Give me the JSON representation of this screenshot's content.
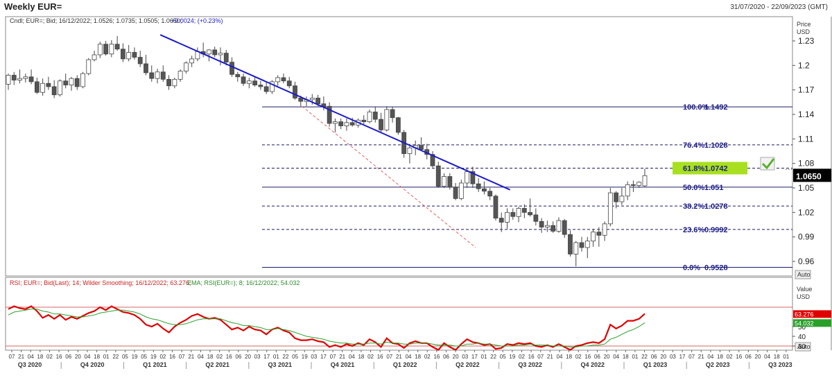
{
  "header": {
    "title": "Weekly EUR=",
    "date_range": "31/07/2020 - 22/09/2023 (GMT)"
  },
  "chart_data": [
    {
      "type": "candlestick",
      "info_line": "Cndl; EUR=; Bid; 16/12/2022; 1.0526; 1.0735; 1.0505; 1.0650;",
      "info_change": "+0.0024; (+0.23%)",
      "y_axis_title": [
        "Price",
        "USD"
      ],
      "y_ticks": [
        "1.23",
        "1.2",
        "1.17",
        "1.14",
        "1.11",
        "1.08",
        "1.05",
        "1.02",
        "0.99",
        "0.96"
      ],
      "ylim": [
        0.949,
        1.243
      ],
      "last_price_label": "1.0650",
      "auto_label": "Auto",
      "candles": [
        [
          1.177,
          1.19,
          1.17,
          1.188
        ],
        [
          1.188,
          1.192,
          1.176,
          1.182
        ],
        [
          1.182,
          1.195,
          1.178,
          1.184
        ],
        [
          1.184,
          1.19,
          1.179,
          1.186
        ],
        [
          1.186,
          1.195,
          1.177,
          1.18
        ],
        [
          1.18,
          1.185,
          1.165,
          1.167
        ],
        [
          1.167,
          1.184,
          1.163,
          1.178
        ],
        [
          1.178,
          1.186,
          1.17,
          1.174
        ],
        [
          1.174,
          1.182,
          1.16,
          1.164
        ],
        [
          1.164,
          1.183,
          1.162,
          1.181
        ],
        [
          1.181,
          1.19,
          1.172,
          1.176
        ],
        [
          1.176,
          1.186,
          1.169,
          1.184
        ],
        [
          1.184,
          1.188,
          1.17,
          1.174
        ],
        [
          1.174,
          1.192,
          1.172,
          1.19
        ],
        [
          1.19,
          1.209,
          1.188,
          1.207
        ],
        [
          1.207,
          1.218,
          1.205,
          1.213
        ],
        [
          1.213,
          1.229,
          1.209,
          1.226
        ],
        [
          1.226,
          1.23,
          1.212,
          1.214
        ],
        [
          1.214,
          1.231,
          1.21,
          1.226
        ],
        [
          1.226,
          1.236,
          1.218,
          1.22
        ],
        [
          1.22,
          1.227,
          1.204,
          1.208
        ],
        [
          1.208,
          1.225,
          1.205,
          1.216
        ],
        [
          1.216,
          1.222,
          1.207,
          1.21
        ],
        [
          1.21,
          1.218,
          1.198,
          1.202
        ],
        [
          1.202,
          1.213,
          1.188,
          1.191
        ],
        [
          1.191,
          1.2,
          1.18,
          1.184
        ],
        [
          1.184,
          1.196,
          1.178,
          1.192
        ],
        [
          1.192,
          1.2,
          1.18,
          1.183
        ],
        [
          1.183,
          1.188,
          1.17,
          1.175
        ],
        [
          1.175,
          1.185,
          1.172,
          1.183
        ],
        [
          1.183,
          1.195,
          1.18,
          1.193
        ],
        [
          1.193,
          1.205,
          1.19,
          1.203
        ],
        [
          1.203,
          1.212,
          1.198,
          1.208
        ],
        [
          1.208,
          1.222,
          1.205,
          1.217
        ],
        [
          1.217,
          1.228,
          1.21,
          1.214
        ],
        [
          1.214,
          1.22,
          1.205,
          1.219
        ],
        [
          1.219,
          1.223,
          1.21,
          1.213
        ],
        [
          1.213,
          1.222,
          1.2,
          1.215
        ],
        [
          1.215,
          1.219,
          1.2,
          1.204
        ],
        [
          1.204,
          1.21,
          1.186,
          1.189
        ],
        [
          1.189,
          1.192,
          1.18,
          1.186
        ],
        [
          1.186,
          1.19,
          1.175,
          1.178
        ],
        [
          1.178,
          1.185,
          1.172,
          1.181
        ],
        [
          1.181,
          1.186,
          1.174,
          1.176
        ],
        [
          1.176,
          1.181,
          1.17,
          1.174
        ],
        [
          1.174,
          1.18,
          1.165,
          1.168
        ],
        [
          1.168,
          1.182,
          1.165,
          1.18
        ],
        [
          1.18,
          1.188,
          1.175,
          1.185
        ],
        [
          1.185,
          1.19,
          1.178,
          1.181
        ],
        [
          1.181,
          1.186,
          1.172,
          1.175
        ],
        [
          1.175,
          1.18,
          1.158,
          1.16
        ],
        [
          1.16,
          1.163,
          1.15,
          1.156
        ],
        [
          1.156,
          1.162,
          1.15,
          1.158
        ],
        [
          1.158,
          1.165,
          1.152,
          1.16
        ],
        [
          1.16,
          1.164,
          1.15,
          1.153
        ],
        [
          1.153,
          1.162,
          1.145,
          1.15
        ],
        [
          1.15,
          1.155,
          1.125,
          1.129
        ],
        [
          1.129,
          1.135,
          1.118,
          1.131
        ],
        [
          1.131,
          1.135,
          1.122,
          1.126
        ],
        [
          1.126,
          1.135,
          1.12,
          1.13
        ],
        [
          1.13,
          1.136,
          1.125,
          1.127
        ],
        [
          1.127,
          1.135,
          1.124,
          1.133
        ],
        [
          1.133,
          1.139,
          1.128,
          1.131
        ],
        [
          1.131,
          1.146,
          1.129,
          1.143
        ],
        [
          1.143,
          1.149,
          1.13,
          1.134
        ],
        [
          1.134,
          1.142,
          1.118,
          1.121
        ],
        [
          1.121,
          1.15,
          1.119,
          1.146
        ],
        [
          1.146,
          1.149,
          1.13,
          1.136
        ],
        [
          1.136,
          1.137,
          1.115,
          1.118
        ],
        [
          1.118,
          1.121,
          1.087,
          1.092
        ],
        [
          1.092,
          1.104,
          1.08,
          1.099
        ],
        [
          1.099,
          1.108,
          1.09,
          1.102
        ],
        [
          1.102,
          1.112,
          1.095,
          1.097
        ],
        [
          1.097,
          1.104,
          1.085,
          1.091
        ],
        [
          1.091,
          1.095,
          1.075,
          1.077
        ],
        [
          1.077,
          1.082,
          1.05,
          1.052
        ],
        [
          1.052,
          1.068,
          1.05,
          1.064
        ],
        [
          1.064,
          1.068,
          1.048,
          1.051
        ],
        [
          1.051,
          1.056,
          1.035,
          1.037
        ],
        [
          1.037,
          1.06,
          1.035,
          1.056
        ],
        [
          1.056,
          1.075,
          1.05,
          1.07
        ],
        [
          1.07,
          1.076,
          1.05,
          1.055
        ],
        [
          1.055,
          1.062,
          1.045,
          1.049
        ],
        [
          1.049,
          1.058,
          1.042,
          1.046
        ],
        [
          1.046,
          1.05,
          1.035,
          1.04
        ],
        [
          1.04,
          1.042,
          1.01,
          1.013
        ],
        [
          1.013,
          1.02,
          0.996,
          1.008
        ],
        [
          1.008,
          1.025,
          1.0,
          1.02
        ],
        [
          1.02,
          1.025,
          1.011,
          1.015
        ],
        [
          1.015,
          1.027,
          1.008,
          1.025
        ],
        [
          1.025,
          1.03,
          1.013,
          1.02
        ],
        [
          1.02,
          1.037,
          1.015,
          1.017
        ],
        [
          1.017,
          1.025,
          1.004,
          1.009
        ],
        [
          1.009,
          1.013,
          0.995,
          1.002
        ],
        [
          1.002,
          1.01,
          0.996,
          1.004
        ],
        [
          1.004,
          1.009,
          0.995,
          0.997
        ],
        [
          0.997,
          1.014,
          0.995,
          1.01
        ],
        [
          1.01,
          1.012,
          0.989,
          0.993
        ],
        [
          0.993,
          0.998,
          0.966,
          0.969
        ],
        [
          0.969,
          0.985,
          0.954,
          0.983
        ],
        [
          0.983,
          0.99,
          0.972,
          0.977
        ],
        [
          0.977,
          0.99,
          0.964,
          0.985
        ],
        [
          0.985,
          1.0,
          0.978,
          0.996
        ],
        [
          0.996,
          1.002,
          0.978,
          0.992
        ],
        [
          0.992,
          1.009,
          0.985,
          1.006
        ],
        [
          1.006,
          1.05,
          1.003,
          1.044
        ],
        [
          1.044,
          1.046,
          1.025,
          1.033
        ],
        [
          1.033,
          1.05,
          1.029,
          1.04
        ],
        [
          1.04,
          1.058,
          1.035,
          1.054
        ],
        [
          1.054,
          1.059,
          1.045,
          1.053
        ],
        [
          1.053,
          1.058,
          1.05,
          1.057
        ],
        [
          1.0526,
          1.0735,
          1.0505,
          1.065
        ]
      ],
      "trendlines": [
        {
          "name": "main-downtrend",
          "x1": 26.5,
          "y1": 1.2375,
          "x2": 87.5,
          "y2": 1.0477,
          "color": "#1a1acc",
          "style": "solid"
        },
        {
          "name": "inner-downtrend",
          "x1": 51.2,
          "y1": 1.15,
          "x2": 81.5,
          "y2": 0.977,
          "color": "#e06060",
          "style": "dashed"
        }
      ],
      "fibonacci": [
        {
          "level": "100.0%",
          "value": 1.1492,
          "label": "1.1492",
          "style": "solid"
        },
        {
          "level": "76.4%",
          "value": 1.1028,
          "label": "1.1028",
          "style": "dashed"
        },
        {
          "level": "61.8%",
          "value": 1.0742,
          "label": "1.0742",
          "style": "dashed",
          "highlight": "#a8e020"
        },
        {
          "level": "50.0%",
          "value": 1.051,
          "label": "1.051",
          "style": "solid"
        },
        {
          "level": "38.2%",
          "value": 1.0278,
          "label": "1.0278",
          "style": "dashed"
        },
        {
          "level": "23.6%",
          "value": 0.9992,
          "label": "0.9992",
          "style": "dashed"
        },
        {
          "level": "0.0%",
          "value": 0.9528,
          "label": "0.9528",
          "style": "solid"
        }
      ],
      "colors": {
        "candle": "#555555",
        "trend": "#1a1acc",
        "fib": "#1a1a66",
        "fib_label": "#1a1a88",
        "check": "#58b02a"
      }
    },
    {
      "type": "line",
      "info_line_rsi": "RSI; EUR=; Bid(Last); 14; Wilder Smoothing; 16/12/2022; 63.276;",
      "info_line_ema": "EMA; RSI(EUR=); 8; 16/12/2022; 54.032",
      "y_axis_title": [
        "Value",
        "USD"
      ],
      "y_ticks": [
        "50",
        "40",
        "30"
      ],
      "ylim": [
        20,
        85
      ],
      "guides": [
        70,
        30
      ],
      "auto_label": "Auto",
      "series": [
        {
          "name": "RSI",
          "color": "#e00000",
          "label": "63.276",
          "values": [
            68,
            71,
            69,
            68,
            71,
            66,
            59,
            62,
            58,
            62,
            57,
            60,
            58,
            61,
            64,
            66,
            70,
            67,
            71,
            68,
            65,
            64,
            62,
            58,
            52,
            50,
            53,
            48,
            44,
            50,
            54,
            57,
            61,
            63,
            60,
            58,
            59,
            57,
            52,
            47,
            49,
            46,
            50,
            47,
            46,
            42,
            47,
            49,
            46,
            44,
            38,
            36,
            36,
            37,
            35,
            34,
            29,
            31,
            29,
            32,
            30,
            33,
            31,
            37,
            34,
            29,
            38,
            33,
            32,
            28,
            33,
            35,
            33,
            33,
            29,
            26,
            33,
            29,
            26,
            32,
            37,
            34,
            33,
            31,
            32,
            27,
            28,
            32,
            31,
            33,
            32,
            33,
            30,
            29,
            31,
            29,
            32,
            29,
            26,
            30,
            31,
            33,
            34,
            33,
            37,
            52,
            48,
            51,
            56,
            56,
            58,
            63.276
          ]
        },
        {
          "name": "EMA",
          "color": "#2aa02a",
          "label": "54.032",
          "values": [
            62,
            65,
            66,
            67,
            68,
            68,
            66,
            65,
            63,
            63,
            62,
            61,
            60,
            60,
            61,
            62,
            64,
            65,
            66,
            67,
            67,
            66,
            65,
            63,
            60,
            58,
            57,
            55,
            53,
            52,
            52,
            53,
            55,
            57,
            58,
            58,
            58,
            58,
            56,
            54,
            53,
            51,
            51,
            50,
            49,
            47,
            47,
            48,
            47,
            46,
            44,
            42,
            40,
            39,
            38,
            37,
            35,
            34,
            33,
            33,
            32,
            32,
            32,
            33,
            33,
            32,
            34,
            33,
            33,
            32,
            32,
            33,
            33,
            33,
            32,
            31,
            31,
            31,
            30,
            30,
            32,
            32,
            33,
            32,
            32,
            31,
            30,
            30,
            30,
            31,
            31,
            32,
            31,
            31,
            31,
            30,
            30,
            30,
            29,
            29,
            30,
            30,
            31,
            31,
            32,
            37,
            39,
            42,
            45,
            47,
            50,
            54.032
          ]
        }
      ]
    }
  ],
  "x_axis": {
    "days": [
      "07",
      "21",
      "04",
      "18",
      "02",
      "16",
      "06",
      "20",
      "04",
      "18",
      "01",
      "22",
      "05",
      "19",
      "05",
      "19",
      "02",
      "16",
      "07",
      "21",
      "04",
      "18",
      "02",
      "16",
      "06",
      "20",
      "03",
      "17",
      "01",
      "22",
      "05",
      "19",
      "03",
      "17",
      "07",
      "21",
      "04",
      "18",
      "02",
      "16",
      "07",
      "21",
      "04",
      "18",
      "02",
      "16",
      "06",
      "20",
      "03",
      "17",
      "01",
      "22",
      "05",
      "19",
      "02",
      "16",
      "07",
      "21",
      "04",
      "18",
      "02",
      "16",
      "06",
      "20",
      "04",
      "18",
      "01",
      "22",
      "06",
      "20",
      "03",
      "17",
      "07",
      "21",
      "04",
      "18",
      "02",
      "16",
      "06",
      "20",
      "04",
      "18",
      "01",
      "22"
    ],
    "quarters": [
      "Q3 2020",
      "Q4 2020",
      "Q1 2021",
      "Q2 2021",
      "Q3 2021",
      "Q4 2021",
      "Q1 2022",
      "Q2 2022",
      "Q3 2022",
      "Q4 2022",
      "Q1 2023",
      "Q2 2023",
      "Q3 2023"
    ]
  }
}
